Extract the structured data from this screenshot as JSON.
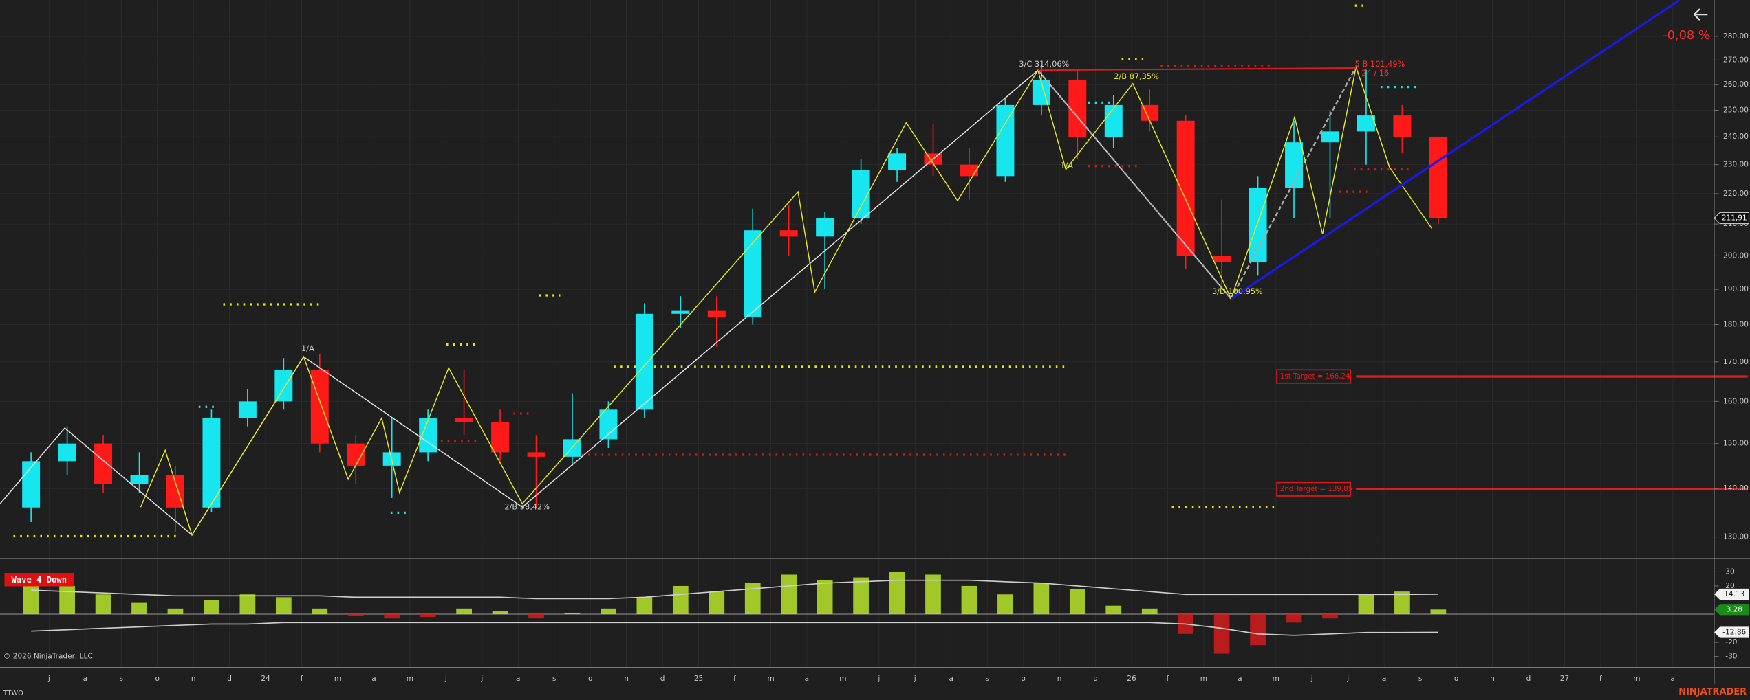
{
  "chart_data": [
    {
      "type": "candlestick",
      "symbol": "TTWO",
      "change": "-0,08 %",
      "close_label": "211,91",
      "log_scale": true,
      "grid": true,
      "up_color": "#18e6ee",
      "down_color": "#ff1a1a",
      "categories": [
        null,
        "j",
        "a",
        "s",
        "o",
        "n",
        "d",
        "24",
        "f",
        "m",
        "a",
        "m",
        "j",
        "j",
        "a",
        "s",
        "o",
        "n",
        "d",
        "25",
        "f",
        "m",
        "a",
        "m",
        "j",
        "j",
        "a",
        "s",
        "o",
        "n",
        "d",
        "26",
        "f",
        "m",
        "a",
        "m",
        "j",
        "j",
        "a",
        "s",
        "o",
        "n",
        "d",
        "27",
        "f",
        "m",
        "a"
      ],
      "open": [
        136,
        146,
        150,
        141,
        143,
        136,
        156,
        160,
        168,
        150,
        145,
        148,
        156,
        155,
        148,
        147,
        151,
        158,
        183,
        184,
        182,
        208,
        206,
        212,
        228,
        234,
        230,
        226,
        252,
        262,
        240,
        252,
        246,
        200,
        198,
        222,
        238,
        242,
        248,
        240,
        null,
        null,
        null,
        null,
        null,
        null,
        null
      ],
      "high": [
        148,
        154,
        152,
        148,
        145,
        158,
        163,
        171,
        172,
        152,
        156,
        158,
        168,
        158,
        152,
        162,
        160,
        186,
        188,
        188,
        215,
        216,
        214,
        232,
        236,
        245,
        236,
        255,
        268,
        266,
        256,
        258,
        248,
        218,
        226,
        246,
        250,
        266,
        252,
        240,
        null,
        null,
        null,
        null,
        null,
        null,
        null
      ],
      "low": [
        133,
        143,
        139,
        139,
        131,
        135,
        154,
        158,
        148,
        141,
        138,
        146,
        152,
        146,
        136,
        145,
        149,
        156,
        179,
        174,
        180,
        200,
        190,
        210,
        224,
        226,
        218,
        224,
        248,
        232,
        236,
        242,
        196,
        190,
        194,
        212,
        212,
        230,
        234,
        210,
        null,
        null,
        null,
        null,
        null,
        null,
        null
      ],
      "close": [
        146,
        150,
        141,
        143,
        136,
        156,
        160,
        168,
        150,
        145,
        148,
        156,
        155,
        148,
        147,
        151,
        158,
        183,
        184,
        182,
        208,
        206,
        212,
        228,
        234,
        230,
        226,
        252,
        262,
        240,
        252,
        246,
        200,
        198,
        222,
        238,
        242,
        248,
        240,
        211.91,
        null,
        null,
        null,
        null,
        null,
        null,
        null
      ],
      "ylim": [
        126,
        296
      ],
      "yticks": [
        {
          "value": 130,
          "label": "130,00"
        },
        {
          "value": 140,
          "label": "140,00"
        },
        {
          "value": 150,
          "label": "150,00"
        },
        {
          "value": 160,
          "label": "160,00"
        },
        {
          "value": 170,
          "label": "170,00"
        },
        {
          "value": 180,
          "label": "180,00"
        },
        {
          "value": 190,
          "label": "190,00"
        },
        {
          "value": 200,
          "label": "200,00"
        },
        {
          "value": 210,
          "label": "210,00"
        },
        {
          "value": 220,
          "label": "220,00"
        },
        {
          "value": 230,
          "label": "230,00"
        },
        {
          "value": 240,
          "label": "240,00"
        },
        {
          "value": 250,
          "label": "250,00"
        },
        {
          "value": 260,
          "label": "260,00"
        },
        {
          "value": 270,
          "label": "270,00"
        },
        {
          "value": 280,
          "label": "280,00"
        }
      ],
      "targets": [
        {
          "label": "1st Target = 166,24",
          "value": 166.24
        },
        {
          "label": "2nd Target = 139,85",
          "value": 139.85
        }
      ],
      "annotations": [
        "1/A",
        "2/B 58,42%",
        "3/C 314,06%",
        "2/B 87,35%",
        "1/A",
        "3/D 100,95%",
        "5 B 101,49%",
        "24 / 16"
      ]
    },
    {
      "type": "oscillator",
      "signal": "Wave 4 Down",
      "pos_color": "#b8e62a",
      "neg_color": "#d41c1c",
      "line_color": "#cfcfcf",
      "ylim": [
        -37.1,
        37.9
      ],
      "yticks": [
        30,
        20,
        -20,
        -30
      ],
      "series": [
        {
          "style": "histogram",
          "values": [
            22,
            20,
            14,
            8,
            4,
            10,
            14,
            12,
            4,
            -1,
            -3,
            -2,
            4,
            2,
            -3,
            1,
            4,
            12,
            20,
            16,
            22,
            28,
            24,
            26,
            30,
            28,
            20,
            14,
            22,
            18,
            6,
            4,
            -14,
            -28,
            -22,
            -6,
            -3,
            14,
            16,
            3.28,
            null,
            null,
            null,
            null,
            null,
            null,
            null
          ]
        },
        {
          "style": "line",
          "values": [
            17,
            16,
            15,
            14,
            13,
            13,
            13,
            13,
            13,
            12,
            12,
            12,
            12,
            12,
            11,
            11,
            11,
            12,
            14,
            16,
            18,
            20,
            22,
            23,
            24,
            24,
            24,
            23,
            22,
            20,
            18,
            16,
            14,
            14,
            14,
            14,
            14,
            14,
            14,
            14.13,
            null,
            null,
            null,
            null,
            null,
            null,
            null
          ]
        },
        {
          "style": "line",
          "values": [
            -12,
            -11,
            -10,
            -9,
            -8,
            -7,
            -7,
            -6,
            -6,
            -6,
            -6,
            -6,
            -6,
            -6,
            -6,
            -6,
            -6,
            -6,
            -6,
            -6,
            -6,
            -6,
            -6,
            -6,
            -6,
            -6,
            -6,
            -6,
            -6,
            -6,
            -6,
            -6,
            -7,
            -10,
            -14,
            -15,
            -14,
            -13,
            -13,
            -12.86,
            null,
            null,
            null,
            null,
            null,
            null,
            null
          ]
        }
      ]
    }
  ],
  "copyright": "© 2026 NinjaTrader, LLC",
  "brand": "NINJATRADER"
}
